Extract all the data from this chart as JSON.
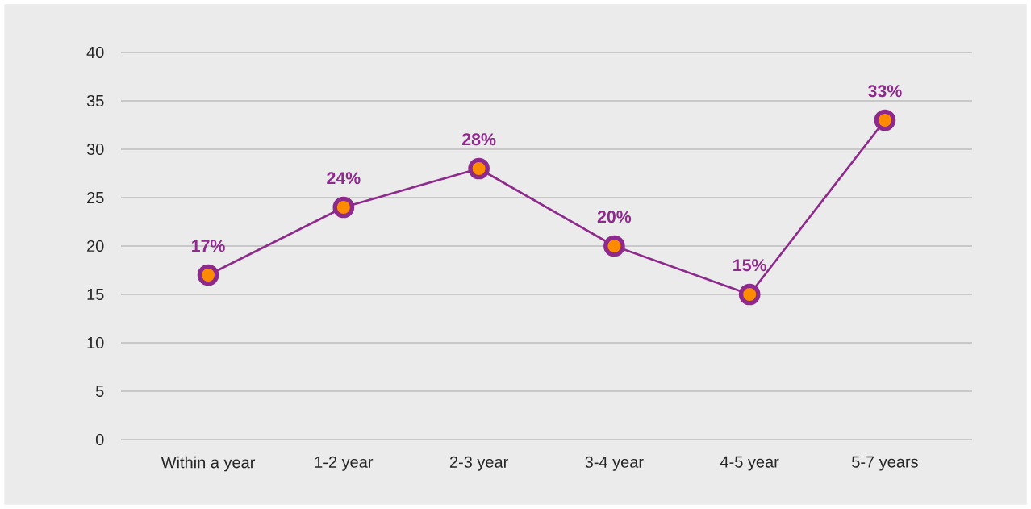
{
  "chart_data": {
    "type": "line",
    "categories": [
      "Within a year",
      "1-2 year",
      "2-3 year",
      "3-4 year",
      "4-5 year",
      "5-7 years"
    ],
    "series": [
      {
        "color": "#8e2a8c",
        "values": [
          17,
          24,
          28,
          20,
          15,
          33
        ],
        "value_labels": [
          "17%",
          "24%",
          "28%",
          "20%",
          "15%",
          "33%"
        ]
      }
    ],
    "ylim": [
      0,
      40
    ],
    "yticks": [
      0,
      5,
      10,
      15,
      20,
      25,
      30,
      35,
      40
    ],
    "grid": "y",
    "marker": "circle",
    "line_style": "solid"
  }
}
